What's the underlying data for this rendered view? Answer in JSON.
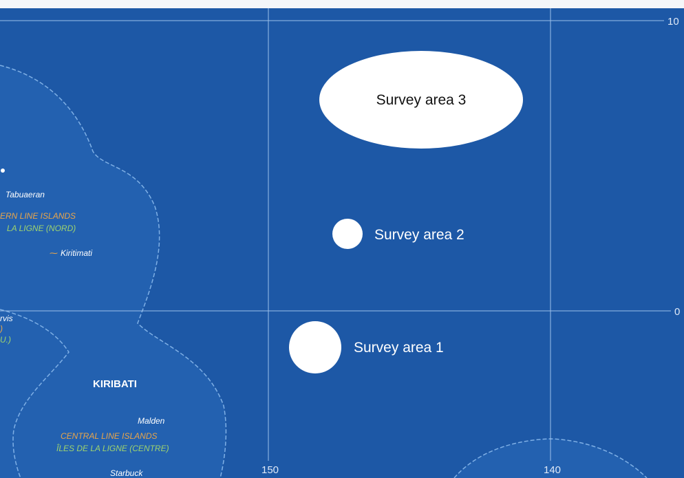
{
  "graticule": {
    "latitude_labels": [
      "10",
      "0"
    ],
    "longitude_labels": [
      "150",
      "140"
    ]
  },
  "survey_areas": [
    {
      "label": "Survey area 3"
    },
    {
      "label": "Survey area 2"
    },
    {
      "label": "Survey area 1"
    }
  ],
  "places": [
    "Tabuaeran",
    "Kiritimati",
    "Malden",
    "Starbuck",
    "rvis",
    ")",
    "U.)"
  ],
  "regions": {
    "country": "KIRIBATI",
    "northern_en": "ERN LINE ISLANDS",
    "northern_fr": "LA LIGNE (NORD)",
    "central_en": "CENTRAL LINE ISLANDS",
    "central_fr": "ÎLES DE LA LIGNE (CENTRE)"
  }
}
